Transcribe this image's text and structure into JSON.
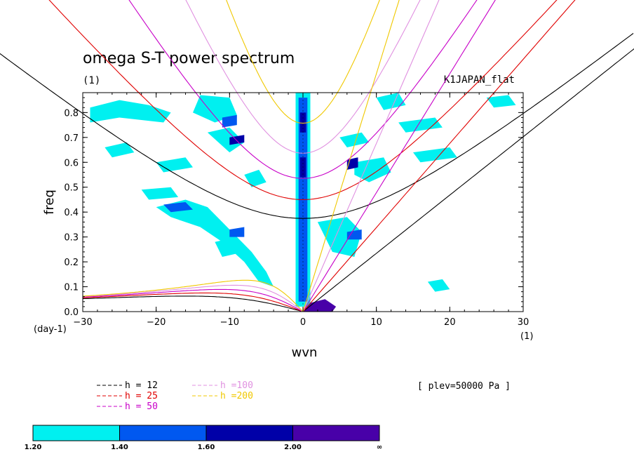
{
  "chart_data": {
    "type": "contour",
    "title": "omega S-T power spectrum",
    "subtitle": "(1)",
    "case_label": "K1JAPAN_flat",
    "xlabel": "wvn",
    "ylabel": "freq",
    "x_unit": "(1)",
    "y_unit": "(day-1)",
    "xlim": [
      -30,
      30
    ],
    "ylim": [
      0,
      0.88
    ],
    "xticks": [
      -30,
      -20,
      -10,
      0,
      10,
      20,
      30
    ],
    "yticks": [
      0.0,
      0.1,
      0.2,
      0.3,
      0.4,
      0.5,
      0.6,
      0.7,
      0.8
    ],
    "ytick_labels": [
      "0.0",
      "0.1",
      "0.2",
      "0.3",
      "0.4",
      "0.5",
      "0.6",
      "0.7",
      "0.8"
    ],
    "annotation": "[ plev=50000 Pa ]",
    "dispersion_curves": [
      {
        "name": "h = 12",
        "color": "#000000"
      },
      {
        "name": "h = 25",
        "color": "#e00000"
      },
      {
        "name": "h = 50",
        "color": "#c800c8"
      },
      {
        "name": "h =100",
        "color": "#e090e0"
      },
      {
        "name": "h =200",
        "color": "#f0c800"
      }
    ],
    "colorbar": {
      "levels": [
        "1.20",
        "1.40",
        "1.60",
        "2.00",
        "∞"
      ],
      "colors": [
        "#00f0f0",
        "#0058f0",
        "#0000a8",
        "#4800a8"
      ]
    },
    "contour_regions": [
      {
        "level": 0,
        "pts": [
          [
            -29,
            0.82
          ],
          [
            -25,
            0.85
          ],
          [
            -21,
            0.83
          ],
          [
            -18,
            0.8
          ],
          [
            -19,
            0.76
          ],
          [
            -25,
            0.78
          ],
          [
            -29,
            0.76
          ]
        ]
      },
      {
        "level": 0,
        "pts": [
          [
            -14,
            0.87
          ],
          [
            -10,
            0.86
          ],
          [
            -9,
            0.79
          ],
          [
            -12,
            0.76
          ],
          [
            -15,
            0.8
          ]
        ]
      },
      {
        "level": 0,
        "pts": [
          [
            -27,
            0.66
          ],
          [
            -24,
            0.68
          ],
          [
            -23,
            0.64
          ],
          [
            -26,
            0.62
          ]
        ]
      },
      {
        "level": 0,
        "pts": [
          [
            -20,
            0.6
          ],
          [
            -16,
            0.62
          ],
          [
            -15,
            0.58
          ],
          [
            -19,
            0.56
          ]
        ]
      },
      {
        "level": 0,
        "pts": [
          [
            -22,
            0.49
          ],
          [
            -18,
            0.5
          ],
          [
            -17,
            0.46
          ],
          [
            -21,
            0.45
          ]
        ]
      },
      {
        "level": 0,
        "pts": [
          [
            -20,
            0.42
          ],
          [
            -16,
            0.45
          ],
          [
            -13,
            0.42
          ],
          [
            -11,
            0.36
          ],
          [
            -9,
            0.3
          ],
          [
            -7,
            0.24
          ],
          [
            -5,
            0.16
          ],
          [
            -4,
            0.1
          ],
          [
            -6,
            0.12
          ],
          [
            -8,
            0.2
          ],
          [
            -11,
            0.28
          ],
          [
            -14,
            0.34
          ],
          [
            -18,
            0.38
          ]
        ]
      },
      {
        "level": 0,
        "pts": [
          [
            -13,
            0.72
          ],
          [
            -10,
            0.74
          ],
          [
            -8,
            0.68
          ],
          [
            -10,
            0.64
          ]
        ]
      },
      {
        "level": 0,
        "pts": [
          [
            -8,
            0.55
          ],
          [
            -6,
            0.57
          ],
          [
            -5,
            0.52
          ],
          [
            -7,
            0.5
          ]
        ]
      },
      {
        "level": 0,
        "pts": [
          [
            -12,
            0.28
          ],
          [
            -9,
            0.3
          ],
          [
            -8,
            0.24
          ],
          [
            -11,
            0.22
          ]
        ]
      },
      {
        "level": 0,
        "pts": [
          [
            2,
            0.36
          ],
          [
            6,
            0.38
          ],
          [
            8,
            0.32
          ],
          [
            7,
            0.22
          ],
          [
            4,
            0.24
          ],
          [
            3,
            0.3
          ]
        ]
      },
      {
        "level": 0,
        "pts": [
          [
            7,
            0.6
          ],
          [
            11,
            0.62
          ],
          [
            12,
            0.56
          ],
          [
            9,
            0.52
          ],
          [
            7,
            0.55
          ]
        ]
      },
      {
        "level": 0,
        "pts": [
          [
            10,
            0.86
          ],
          [
            13,
            0.88
          ],
          [
            14,
            0.83
          ],
          [
            11,
            0.81
          ]
        ]
      },
      {
        "level": 0,
        "pts": [
          [
            13,
            0.76
          ],
          [
            18,
            0.78
          ],
          [
            19,
            0.74
          ],
          [
            14,
            0.72
          ]
        ]
      },
      {
        "level": 0,
        "pts": [
          [
            15,
            0.64
          ],
          [
            20,
            0.66
          ],
          [
            21,
            0.62
          ],
          [
            16,
            0.6
          ]
        ]
      },
      {
        "level": 0,
        "pts": [
          [
            5,
            0.7
          ],
          [
            8,
            0.72
          ],
          [
            9,
            0.68
          ],
          [
            6,
            0.66
          ]
        ]
      },
      {
        "level": 0,
        "pts": [
          [
            17,
            0.12
          ],
          [
            19,
            0.13
          ],
          [
            20,
            0.09
          ],
          [
            18,
            0.08
          ]
        ]
      },
      {
        "level": 0,
        "pts": [
          [
            25,
            0.86
          ],
          [
            28,
            0.87
          ],
          [
            29,
            0.83
          ],
          [
            26,
            0.82
          ]
        ]
      },
      {
        "level": 0,
        "pts": [
          [
            -1,
            0.88
          ],
          [
            1,
            0.88
          ],
          [
            1,
            0.02
          ],
          [
            -1,
            0.02
          ]
        ]
      },
      {
        "level": 1,
        "pts": [
          [
            -19,
            0.43
          ],
          [
            -16,
            0.44
          ],
          [
            -15,
            0.41
          ],
          [
            -18,
            0.4
          ]
        ]
      },
      {
        "level": 1,
        "pts": [
          [
            -11,
            0.78
          ],
          [
            -9,
            0.79
          ],
          [
            -9,
            0.75
          ],
          [
            -11,
            0.74
          ]
        ]
      },
      {
        "level": 1,
        "pts": [
          [
            -10,
            0.33
          ],
          [
            -8,
            0.34
          ],
          [
            -8,
            0.3
          ],
          [
            -10,
            0.3
          ]
        ]
      },
      {
        "level": 1,
        "pts": [
          [
            6,
            0.32
          ],
          [
            8,
            0.33
          ],
          [
            8,
            0.29
          ],
          [
            6,
            0.29
          ]
        ]
      },
      {
        "level": 1,
        "pts": [
          [
            -0.6,
            0.86
          ],
          [
            0.6,
            0.86
          ],
          [
            0.6,
            0.04
          ],
          [
            -0.6,
            0.04
          ]
        ]
      },
      {
        "level": 2,
        "pts": [
          [
            -10,
            0.7
          ],
          [
            -8,
            0.71
          ],
          [
            -8,
            0.68
          ],
          [
            -10,
            0.67
          ]
        ]
      },
      {
        "level": 2,
        "pts": [
          [
            -0.4,
            0.8
          ],
          [
            0.4,
            0.8
          ],
          [
            0.4,
            0.72
          ],
          [
            -0.4,
            0.72
          ]
        ]
      },
      {
        "level": 2,
        "pts": [
          [
            -0.4,
            0.62
          ],
          [
            0.4,
            0.62
          ],
          [
            0.4,
            0.54
          ],
          [
            -0.4,
            0.54
          ]
        ]
      },
      {
        "level": 2,
        "pts": [
          [
            6,
            0.61
          ],
          [
            7.5,
            0.62
          ],
          [
            7.5,
            0.58
          ],
          [
            6,
            0.57
          ]
        ]
      },
      {
        "level": 3,
        "pts": [
          [
            0,
            0.0
          ],
          [
            1,
            0.035
          ],
          [
            3,
            0.05
          ],
          [
            4.5,
            0.02
          ],
          [
            4,
            0.0
          ]
        ]
      }
    ]
  }
}
